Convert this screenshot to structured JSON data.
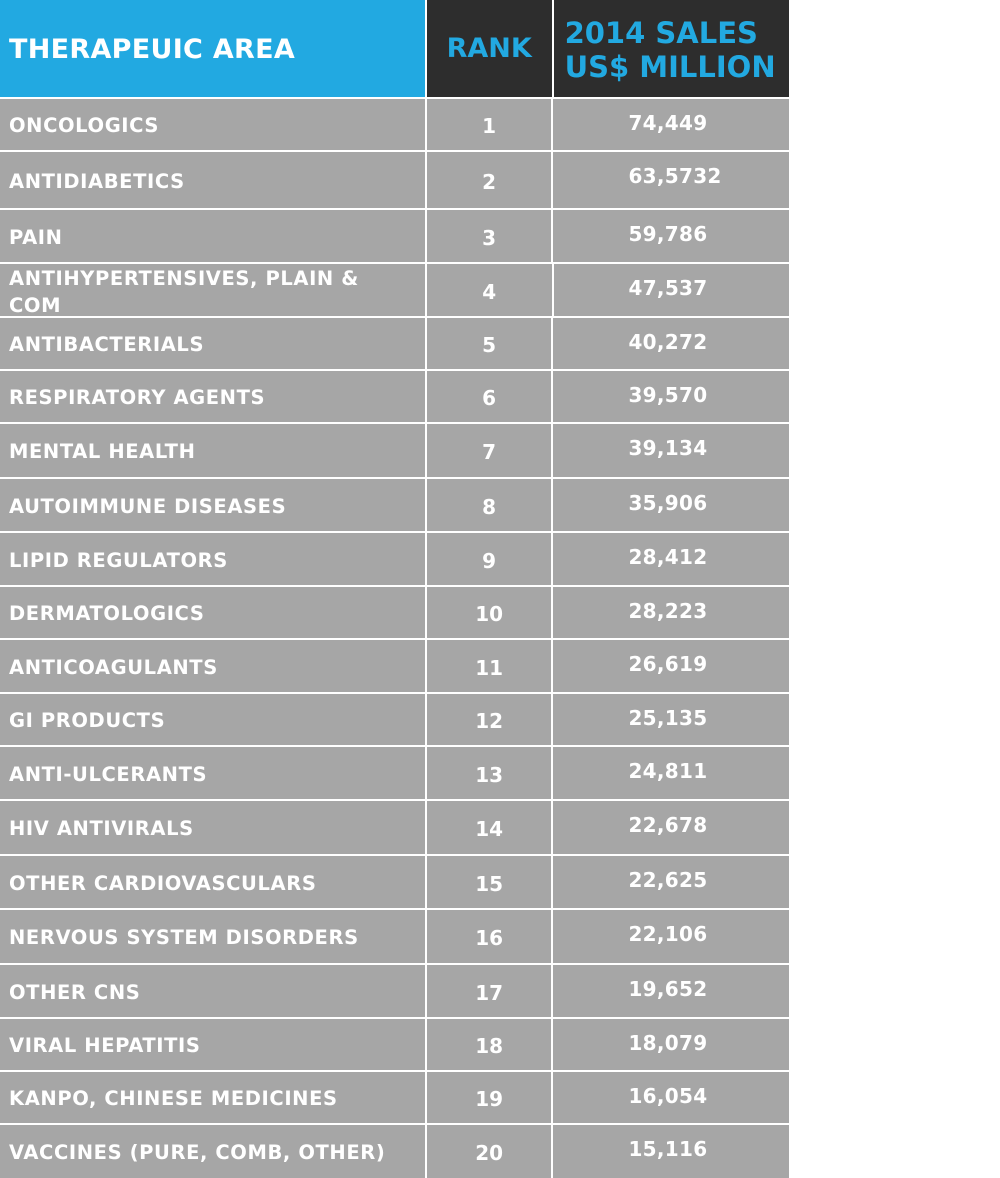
{
  "table": {
    "headers": {
      "area": "THERAPEUIC AREA",
      "rank": "RANK",
      "sales_line1": "2014 SALES",
      "sales_line2": "US$ MILLION"
    },
    "rows": [
      {
        "area": "ONCOLOGICS",
        "rank": "1",
        "sales": "74,449"
      },
      {
        "area": "ANTIDIABETICS",
        "rank": "2",
        "sales": "63,5732"
      },
      {
        "area": "PAIN",
        "rank": "3",
        "sales": "59,786"
      },
      {
        "area": "ANTIHYPERTENSIVES, PLAIN & COM",
        "rank": "4",
        "sales": "47,537"
      },
      {
        "area": "ANTIBACTERIALS",
        "rank": "5",
        "sales": "40,272"
      },
      {
        "area": "RESPIRATORY AGENTS",
        "rank": "6",
        "sales": "39,570"
      },
      {
        "area": "MENTAL HEALTH",
        "rank": "7",
        "sales": "39,134"
      },
      {
        "area": "AUTOIMMUNE DISEASES",
        "rank": "8",
        "sales": "35,906"
      },
      {
        "area": "LIPID REGULATORS",
        "rank": "9",
        "sales": "28,412"
      },
      {
        "area": "DERMATOLOGICS",
        "rank": "10",
        "sales": "28,223"
      },
      {
        "area": "ANTICOAGULANTS",
        "rank": "11",
        "sales": "26,619"
      },
      {
        "area": "GI PRODUCTS",
        "rank": "12",
        "sales": "25,135"
      },
      {
        "area": "ANTI-ULCERANTS",
        "rank": "13",
        "sales": "24,811"
      },
      {
        "area": "HIV ANTIVIRALS",
        "rank": "14",
        "sales": "22,678"
      },
      {
        "area": "OTHER CARDIOVASCULARS",
        "rank": "15",
        "sales": "22,625"
      },
      {
        "area": "NERVOUS SYSTEM DISORDERS",
        "rank": "16",
        "sales": "22,106"
      },
      {
        "area": "OTHER CNS",
        "rank": "17",
        "sales": "19,652"
      },
      {
        "area": "VIRAL HEPATITIS",
        "rank": "18",
        "sales": "18,079"
      },
      {
        "area": "KANPO, CHINESE MEDICINES",
        "rank": "19",
        "sales": "16,054"
      },
      {
        "area": "VACCINES (PURE, COMB, OTHER)",
        "rank": "20",
        "sales": "15,116"
      }
    ]
  }
}
